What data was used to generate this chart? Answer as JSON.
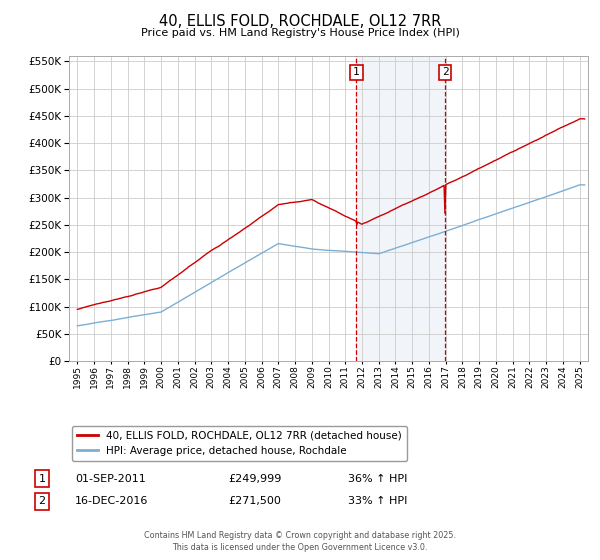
{
  "title": "40, ELLIS FOLD, ROCHDALE, OL12 7RR",
  "subtitle": "Price paid vs. HM Land Registry's House Price Index (HPI)",
  "ylim": [
    0,
    560000
  ],
  "ytick_step": 50000,
  "xlim_start": 1994.5,
  "xlim_end": 2025.5,
  "sale1_year": 2011.67,
  "sale1_price": 249999,
  "sale1_date": "01-SEP-2011",
  "sale1_hpi": "36% ↑ HPI",
  "sale2_year": 2016.96,
  "sale2_price": 271500,
  "sale2_date": "16-DEC-2016",
  "sale2_hpi": "33% ↑ HPI",
  "red_color": "#cc0000",
  "blue_color": "#7bafd4",
  "vline_color": "#cc0000",
  "shade_color": "#c8d8e8",
  "grid_color": "#cccccc",
  "legend1": "40, ELLIS FOLD, ROCHDALE, OL12 7RR (detached house)",
  "legend2": "HPI: Average price, detached house, Rochdale",
  "footer": "Contains HM Land Registry data © Crown copyright and database right 2025.\nThis data is licensed under the Open Government Licence v3.0."
}
